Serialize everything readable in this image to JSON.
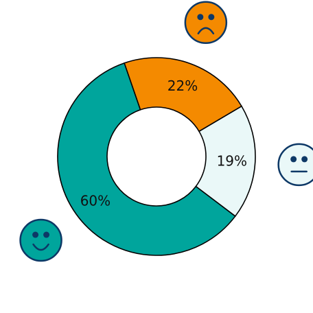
{
  "chart_data": {
    "type": "pie",
    "variant": "donut",
    "slices": [
      {
        "label": "60%",
        "value": 60,
        "color": "#00a59c",
        "icon": "happy-face-icon"
      },
      {
        "label": "19%",
        "value": 19,
        "color": "#eaf8f8",
        "icon": "neutral-face-icon"
      },
      {
        "label": "22%",
        "value": 22,
        "color": "#f48a00",
        "icon": "sad-face-icon"
      }
    ],
    "legend": "icons-beside-slices",
    "outline_color": "#000000"
  },
  "icons": {
    "face_stroke": "#0d3866",
    "neutral_fill": "#eaf8f8"
  }
}
